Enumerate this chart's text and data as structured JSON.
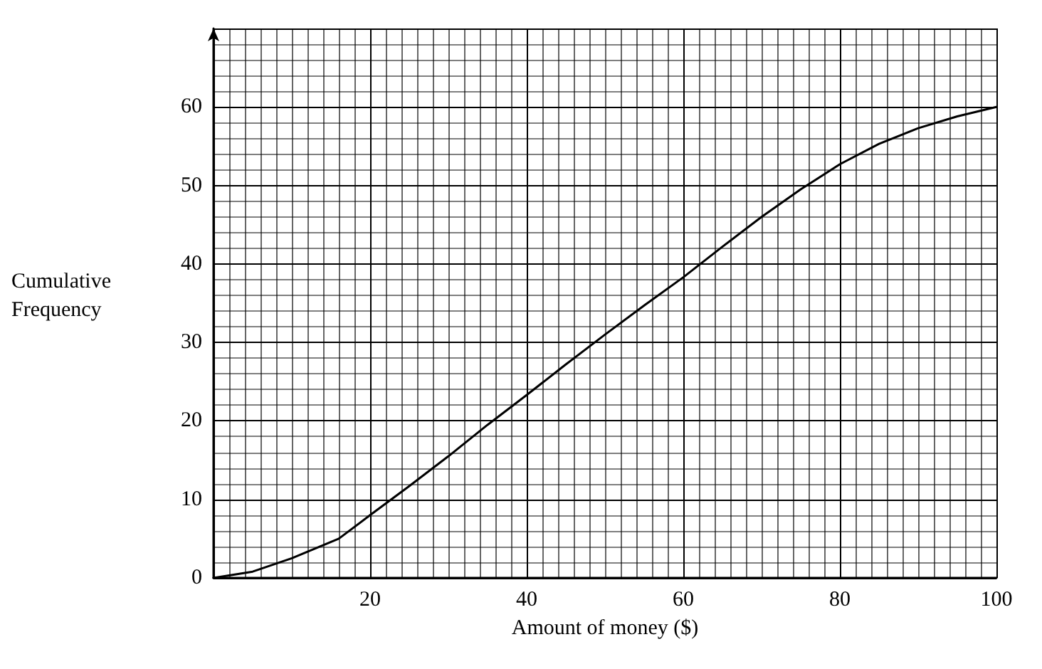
{
  "chart_data": {
    "type": "line",
    "xlabel": "Amount of money ($)",
    "ylabel": "Cumulative Frequency",
    "x": [
      0,
      5,
      10,
      16,
      20,
      25,
      30,
      35,
      40,
      45,
      50,
      55,
      60,
      65,
      70,
      75,
      80,
      85,
      90,
      95,
      100
    ],
    "series": [
      {
        "color": "#000000",
        "values": [
          0,
          0.8,
          2.5,
          5,
          8,
          11.7,
          15.5,
          19.5,
          23.3,
          27.2,
          31,
          34.7,
          38.3,
          42.2,
          46,
          49.5,
          52.7,
          55.3,
          57.3,
          58.8,
          60
        ]
      }
    ],
    "xlim": [
      0,
      100
    ],
    "xticks": [
      20,
      40,
      60,
      80,
      100
    ],
    "ylim": [
      0,
      70
    ],
    "yticks": [
      0,
      10,
      20,
      30,
      40,
      50,
      60
    ],
    "grid": true,
    "marker": "none",
    "line_style": "solid"
  }
}
